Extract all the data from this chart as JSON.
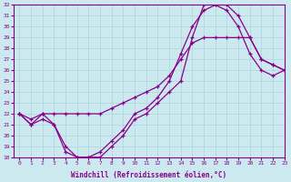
{
  "xlabel": "Windchill (Refroidissement éolien,°C)",
  "ylabel": "",
  "xlim": [
    -0.5,
    23
  ],
  "ylim": [
    18,
    32
  ],
  "xticks": [
    0,
    1,
    2,
    3,
    4,
    5,
    6,
    7,
    8,
    9,
    10,
    11,
    12,
    13,
    14,
    15,
    16,
    17,
    18,
    19,
    20,
    21,
    22,
    23
  ],
  "yticks": [
    18,
    19,
    20,
    21,
    22,
    23,
    24,
    25,
    26,
    27,
    28,
    29,
    30,
    31,
    32
  ],
  "bg_color": "#cde9f0",
  "line_color": "#880088",
  "grid_color": "#aad4dd",
  "line1_x": [
    0,
    1,
    2,
    3,
    4,
    5,
    6,
    7,
    8,
    9,
    10,
    11,
    12,
    13,
    14,
    15,
    16,
    17,
    18,
    19,
    20,
    21,
    22,
    23
  ],
  "line1_y": [
    22,
    21,
    22,
    21,
    19,
    18,
    18,
    18.5,
    19.5,
    20.5,
    22,
    22.5,
    23.5,
    25,
    27.5,
    30,
    31.5,
    32,
    32,
    31,
    29,
    27,
    26.5,
    26
  ],
  "line2_x": [
    0,
    1,
    2,
    3,
    4,
    5,
    6,
    7,
    8,
    9,
    10,
    11,
    12,
    13,
    14,
    15,
    16,
    17,
    18,
    19,
    20,
    21,
    22,
    23
  ],
  "line2_y": [
    22,
    21,
    21.5,
    21,
    18.5,
    18,
    18,
    18,
    19,
    20,
    21.5,
    22,
    23,
    24,
    25,
    29,
    32,
    32,
    31.5,
    30,
    27.5,
    26,
    25.5,
    26
  ],
  "line3_x": [
    0,
    1,
    2,
    3,
    4,
    5,
    6,
    7,
    8,
    9,
    10,
    11,
    12,
    13,
    14,
    15,
    16,
    17,
    18,
    19,
    20,
    21,
    22,
    23
  ],
  "line3_y": [
    22,
    21.5,
    22,
    22,
    22,
    22,
    22,
    22,
    22.5,
    23,
    23.5,
    24,
    24.5,
    25.5,
    27,
    28.5,
    29,
    29,
    29,
    29,
    29,
    27,
    26.5,
    26
  ]
}
